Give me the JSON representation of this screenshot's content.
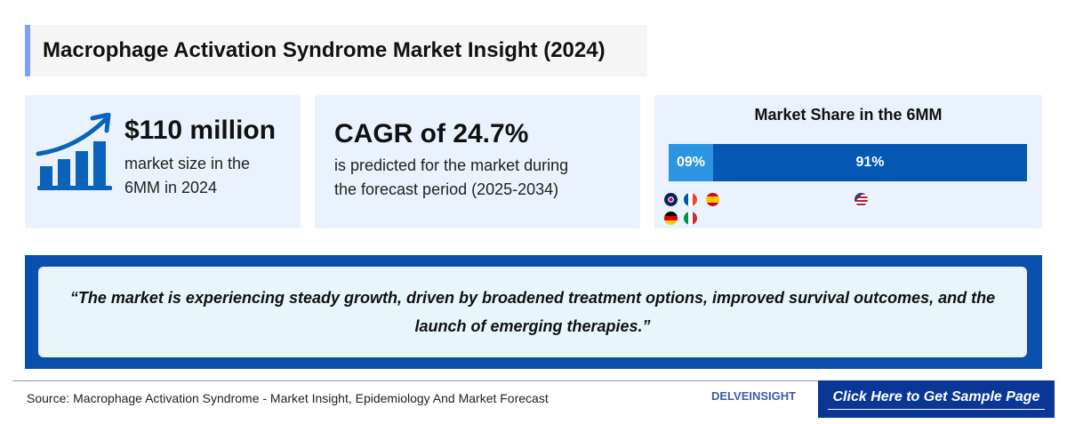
{
  "title": "Macrophage Activation Syndrome Market Insight (2024)",
  "market_size": {
    "value": "$110 million",
    "line1": "market size in the",
    "line2": "6MM in 2024",
    "icon": "growth-chart-icon"
  },
  "cagr": {
    "value": "CAGR of 24.7%",
    "line1": "is predicted for the market during",
    "line2": "the forecast period (2025-2034)"
  },
  "market_share": {
    "title": "Market Share in the 6MM",
    "segments": [
      {
        "label": "09%",
        "value": 9,
        "color": "#2b95e3",
        "flags": [
          "uk",
          "france",
          "spain",
          "germany",
          "italy"
        ]
      },
      {
        "label": "91%",
        "value": 91,
        "color": "#0457b3",
        "flags": [
          "usa"
        ]
      }
    ]
  },
  "quote": "“The market is experiencing steady growth, driven by broadened treatment options, improved survival outcomes, and the launch of emerging therapies.”",
  "footer": {
    "source": "Source: Macrophage Activation Syndrome - Market Insight, Epidemiology And Market Forecast",
    "logo": "DELVEINSIGHT",
    "cta": "Click Here to Get Sample Page"
  }
}
